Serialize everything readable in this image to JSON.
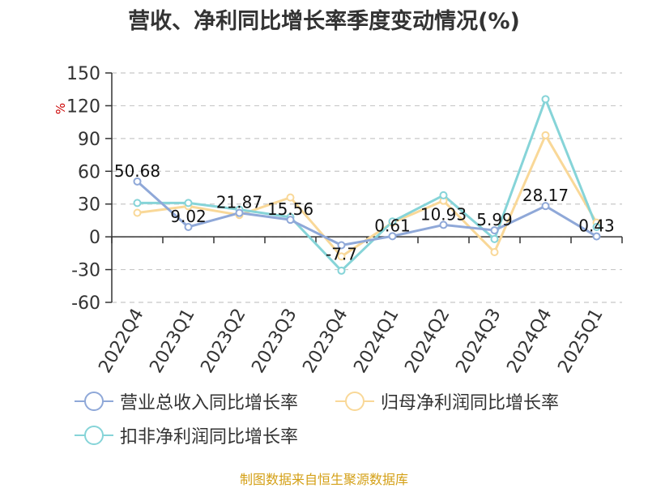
{
  "chart_data": {
    "type": "line",
    "title": "营收、净利同比增长率季度变动情况(%)",
    "unit_label": "%",
    "categories": [
      "2022Q4",
      "2023Q1",
      "2023Q2",
      "2023Q3",
      "2023Q4",
      "2024Q1",
      "2024Q2",
      "2024Q3",
      "2024Q4",
      "2025Q1"
    ],
    "ylim": [
      -60,
      150
    ],
    "yticks": [
      "150",
      "120",
      "90",
      "60",
      "30",
      "0",
      "-30",
      "-60"
    ],
    "grid": true,
    "legend_position": "bottom",
    "series": [
      {
        "name": "营业总收入同比增长率",
        "color": "#8fa8d8",
        "values": [
          50.68,
          9.02,
          21.87,
          15.56,
          -7.7,
          0.61,
          10.93,
          5.99,
          28.17,
          0.43
        ],
        "labels": [
          "50.68",
          "9.02",
          "21.87",
          "15.56",
          "-7.7",
          "0.61",
          "10.93",
          "5.99",
          "28.17",
          "0.43"
        ]
      },
      {
        "name": "归母净利润同比增长率",
        "color": "#f9d898",
        "values": [
          22,
          28,
          20,
          36,
          -18,
          13,
          33,
          -14,
          93,
          13
        ]
      },
      {
        "name": "扣非净利润同比增长率",
        "color": "#86d4d8",
        "values": [
          31,
          31,
          25,
          18,
          -31,
          14,
          38,
          -2,
          126,
          9
        ]
      }
    ]
  },
  "footer": {
    "source": "制图数据来自恒生聚源数据库"
  }
}
